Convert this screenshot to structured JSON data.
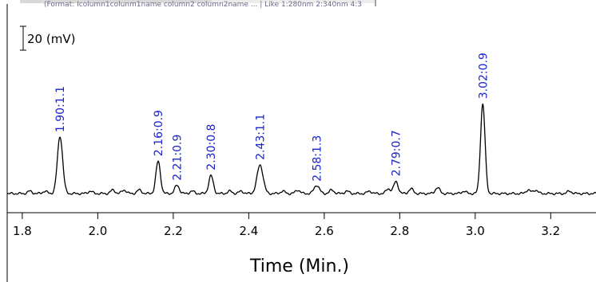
{
  "header_text": "(Format: Icolumn1colunm1name column2 column2name ... | Like 1:280nm 2:340nm 4:3",
  "chart_data": {
    "type": "line",
    "title": "",
    "xlabel": "Time (Min.)",
    "ylabel": "",
    "xlim": [
      1.76,
      3.32
    ],
    "x_ticks": [
      1.8,
      2.0,
      2.2,
      2.4,
      2.6,
      2.8,
      3.0,
      3.2
    ],
    "x_tick_labels": [
      "1.8",
      "2.0",
      "2.2",
      "2.4",
      "2.6",
      "2.8",
      "3.0",
      "3.2"
    ],
    "grid": false,
    "scale_bar_label": "20 (mV)",
    "scale_bar_mv": 20,
    "baseline_mv": 0,
    "peaks": [
      {
        "time": 1.9,
        "height_mv": 48,
        "width": 0.007,
        "label": "1.90:1.1"
      },
      {
        "time": 2.16,
        "height_mv": 27,
        "width": 0.006,
        "label": "2.16:0.9"
      },
      {
        "time": 2.21,
        "height_mv": 7,
        "width": 0.006,
        "label": "2.21:0.9"
      },
      {
        "time": 2.3,
        "height_mv": 15,
        "width": 0.006,
        "label": "2.30:0.8"
      },
      {
        "time": 2.43,
        "height_mv": 24,
        "width": 0.008,
        "label": "2.43:1.1"
      },
      {
        "time": 2.58,
        "height_mv": 7,
        "width": 0.007,
        "label": "2.58:1.3"
      },
      {
        "time": 2.79,
        "height_mv": 10,
        "width": 0.006,
        "label": "2.79:0.7"
      },
      {
        "time": 3.02,
        "height_mv": 75,
        "width": 0.006,
        "label": "3.02:0.9"
      }
    ],
    "minor_bumps": [
      {
        "time": 1.82,
        "height_mv": 2
      },
      {
        "time": 1.86,
        "height_mv": 2
      },
      {
        "time": 1.98,
        "height_mv": 2
      },
      {
        "time": 2.04,
        "height_mv": 3
      },
      {
        "time": 2.07,
        "height_mv": 3
      },
      {
        "time": 2.11,
        "height_mv": 3
      },
      {
        "time": 2.25,
        "height_mv": 2
      },
      {
        "time": 2.35,
        "height_mv": 2
      },
      {
        "time": 2.38,
        "height_mv": 2
      },
      {
        "time": 2.49,
        "height_mv": 2
      },
      {
        "time": 2.53,
        "height_mv": 3
      },
      {
        "time": 2.62,
        "height_mv": 3
      },
      {
        "time": 2.66,
        "height_mv": 2
      },
      {
        "time": 2.72,
        "height_mv": 2
      },
      {
        "time": 2.77,
        "height_mv": 4
      },
      {
        "time": 2.83,
        "height_mv": 4
      },
      {
        "time": 2.9,
        "height_mv": 5
      },
      {
        "time": 2.97,
        "height_mv": 2
      },
      {
        "time": 3.14,
        "height_mv": 3
      },
      {
        "time": 3.16,
        "height_mv": 3
      },
      {
        "time": 3.25,
        "height_mv": 2
      }
    ]
  },
  "colors": {
    "trace": "#000000",
    "peak_label": "#1a24c8",
    "axis": "#000000"
  }
}
